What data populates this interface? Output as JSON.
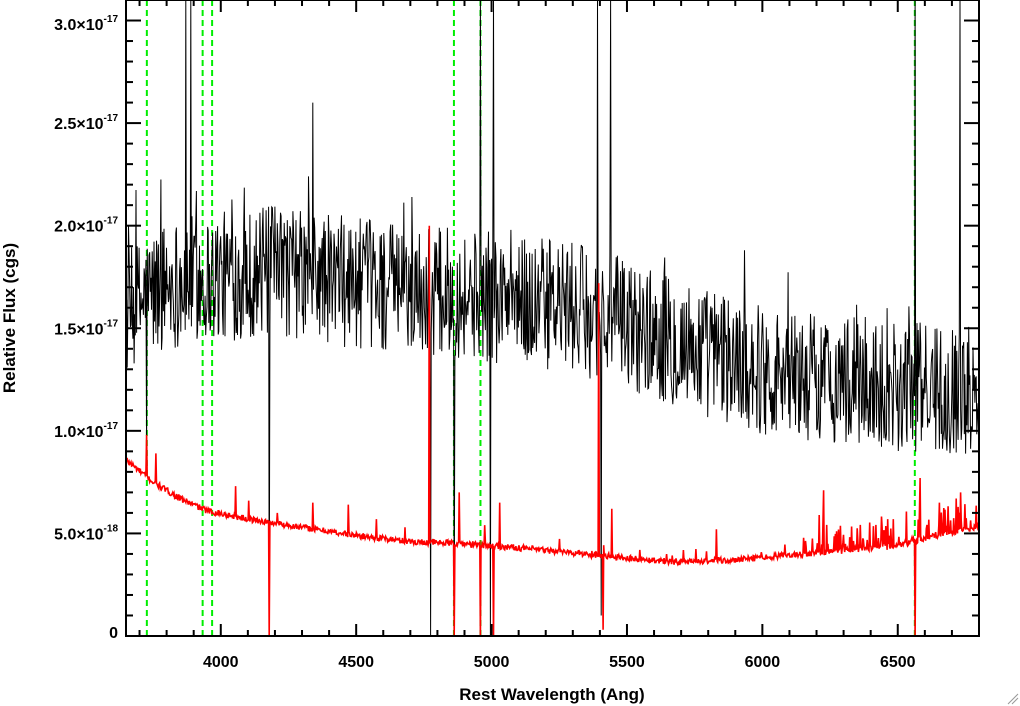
{
  "chart_data": {
    "type": "line",
    "xlabel": "Rest Wavelength (Ang)",
    "ylabel": "Relative Flux (cgs)",
    "xlim": [
      3650,
      6800
    ],
    "ylim": [
      0,
      3.1e-17
    ],
    "x_ticks": [
      {
        "value": 4000,
        "label": "4000"
      },
      {
        "value": 4500,
        "label": "4500"
      },
      {
        "value": 5000,
        "label": "5000"
      },
      {
        "value": 5500,
        "label": "5500"
      },
      {
        "value": 6000,
        "label": "6000"
      },
      {
        "value": 6500,
        "label": "6500"
      }
    ],
    "y_ticks": [
      {
        "value": 0,
        "mantissa": "0",
        "exponent": ""
      },
      {
        "value": 5e-18,
        "mantissa": "5.0×10",
        "exponent": "-18"
      },
      {
        "value": 1e-17,
        "mantissa": "1.0×10",
        "exponent": "-17"
      },
      {
        "value": 1.5e-17,
        "mantissa": "1.5×10",
        "exponent": "-17"
      },
      {
        "value": 2e-17,
        "mantissa": "2.0×10",
        "exponent": "-17"
      },
      {
        "value": 2.5e-17,
        "mantissa": "2.5×10",
        "exponent": "-17"
      },
      {
        "value": 3e-17,
        "mantissa": "3.0×10",
        "exponent": "-17"
      }
    ],
    "grid": false,
    "legend": "none",
    "series": [
      {
        "color": "#000000",
        "style": "noisy",
        "continuum": [
          [
            3650,
            1.55e-17
          ],
          [
            3700,
            1.62e-17
          ],
          [
            3800,
            1.72e-17
          ],
          [
            4000,
            1.75e-17
          ],
          [
            4200,
            1.78e-17
          ],
          [
            4500,
            1.72e-17
          ],
          [
            4800,
            1.68e-17
          ],
          [
            5000,
            1.65e-17
          ],
          [
            5300,
            1.6e-17
          ],
          [
            5500,
            1.52e-17
          ],
          [
            5800,
            1.38e-17
          ],
          [
            6000,
            1.3e-17
          ],
          [
            6200,
            1.26e-17
          ],
          [
            6500,
            1.22e-17
          ],
          [
            6800,
            1.2e-17
          ]
        ],
        "noise_amplitude": 3.2e-18,
        "features": [
          {
            "x": 3727,
            "y": 9e-18
          },
          {
            "x": 3870,
            "y": 3.1e-17
          },
          {
            "x": 3890,
            "y": 3.1e-17
          },
          {
            "x": 4180,
            "y": 0
          },
          {
            "x": 4340,
            "y": 2.6e-17
          },
          {
            "x": 4775,
            "y": 0
          },
          {
            "x": 4862,
            "y": 0
          },
          {
            "x": 4959,
            "y": 3.1e-17
          },
          {
            "x": 5007,
            "y": 3.1e-17
          },
          {
            "x": 4995,
            "y": 0
          },
          {
            "x": 5390,
            "y": 3.1e-17
          },
          {
            "x": 5405,
            "y": 1e-18
          },
          {
            "x": 5440,
            "y": 3.1e-17
          },
          {
            "x": 6563,
            "y": 3.1e-17
          },
          {
            "x": 6730,
            "y": 3.1e-17
          }
        ]
      },
      {
        "color": "#ff0000",
        "style": "smooth",
        "continuum": [
          [
            3650,
            8.6e-18
          ],
          [
            3750,
            7.5e-18
          ],
          [
            3850,
            6.7e-18
          ],
          [
            3950,
            6.1e-18
          ],
          [
            4100,
            5.7e-18
          ],
          [
            4300,
            5.3e-18
          ],
          [
            4500,
            4.9e-18
          ],
          [
            4700,
            4.6e-18
          ],
          [
            4900,
            4.5e-18
          ],
          [
            5100,
            4.3e-18
          ],
          [
            5300,
            4.05e-18
          ],
          [
            5500,
            3.8e-18
          ],
          [
            5700,
            3.6e-18
          ],
          [
            5900,
            3.7e-18
          ],
          [
            6100,
            3.95e-18
          ],
          [
            6300,
            4.15e-18
          ],
          [
            6500,
            4.4e-18
          ],
          [
            6650,
            4.9e-18
          ],
          [
            6800,
            5.3e-18
          ]
        ],
        "noise_amplitude": 1.5e-19,
        "lines": [
          {
            "x": 3727,
            "y": 9.8e-18
          },
          {
            "x": 3760,
            "y": 8.9e-18
          },
          {
            "x": 4055,
            "y": 7.3e-18
          },
          {
            "x": 4102,
            "y": 6.6e-18
          },
          {
            "x": 4178,
            "y": 0
          },
          {
            "x": 4210,
            "y": 6e-18
          },
          {
            "x": 4340,
            "y": 6.5e-18
          },
          {
            "x": 4470,
            "y": 6.4e-18
          },
          {
            "x": 4575,
            "y": 5.7e-18
          },
          {
            "x": 4680,
            "y": 5.3e-18
          },
          {
            "x": 4770,
            "y": 2e-17
          },
          {
            "x": 4862,
            "y": 0
          },
          {
            "x": 4880,
            "y": 7e-18
          },
          {
            "x": 4959,
            "y": 0
          },
          {
            "x": 4975,
            "y": 5.4e-18
          },
          {
            "x": 5007,
            "y": 0
          },
          {
            "x": 5030,
            "y": 6.5e-18
          },
          {
            "x": 5395,
            "y": 1.72e-17
          },
          {
            "x": 5412,
            "y": 3e-19
          },
          {
            "x": 5445,
            "y": 6.2e-18
          },
          {
            "x": 5830,
            "y": 5.2e-18
          },
          {
            "x": 6210,
            "y": 5.9e-18
          },
          {
            "x": 6225,
            "y": 7.1e-18
          },
          {
            "x": 6563,
            "y": 0
          },
          {
            "x": 6583,
            "y": 7.7e-18
          },
          {
            "x": 6716,
            "y": 6.7e-18
          },
          {
            "x": 6731,
            "y": 7e-18
          }
        ]
      }
    ],
    "reference_lines": [
      {
        "x": 3727,
        "color": "#00ee00",
        "style": "dashed"
      },
      {
        "x": 3933,
        "color": "#00ee00",
        "style": "dashed"
      },
      {
        "x": 3968,
        "color": "#00ee00",
        "style": "dashed"
      },
      {
        "x": 4861,
        "color": "#00ee00",
        "style": "dashed"
      },
      {
        "x": 4959,
        "color": "#00ee00",
        "style": "dashed"
      },
      {
        "x": 6563,
        "color": "#00ee00",
        "style": "dashed"
      }
    ]
  }
}
